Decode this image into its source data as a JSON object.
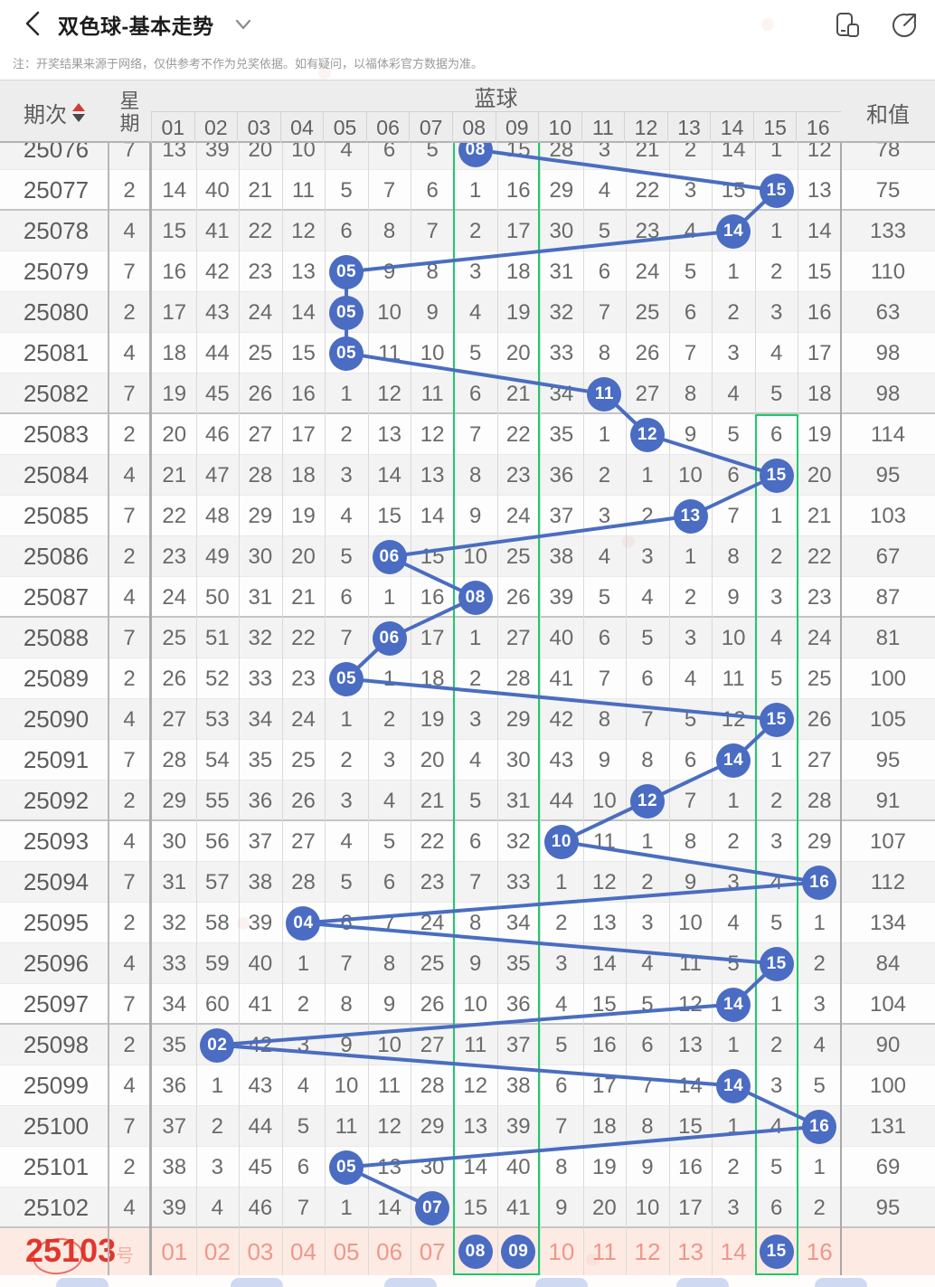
{
  "title_bar": {
    "title": "双色球-基本走势"
  },
  "notice": "注：开奖结果来源于网络，仅供参考不作为兑奖依据。如有疑问，以福体彩官方数据为准。",
  "header": {
    "period": "期次",
    "weekday_line1": "星",
    "weekday_line2": "期",
    "group": "蓝球",
    "sum": "和值",
    "ball_columns": [
      "01",
      "02",
      "03",
      "04",
      "05",
      "06",
      "07",
      "08",
      "09",
      "10",
      "11",
      "12",
      "13",
      "14",
      "15",
      "16"
    ]
  },
  "rows": [
    {
      "period": "25076",
      "weekday": "7",
      "hit": 8,
      "partial": true,
      "cells": [
        "13",
        "39",
        "20",
        "10",
        "4",
        "6",
        "5",
        "08",
        "15",
        "28",
        "3",
        "21",
        "2",
        "14",
        "1",
        "12"
      ],
      "sum": "78"
    },
    {
      "period": "25077",
      "weekday": "2",
      "hit": 15,
      "cells": [
        "14",
        "40",
        "21",
        "11",
        "5",
        "7",
        "6",
        "1",
        "16",
        "29",
        "4",
        "22",
        "3",
        "15",
        "15",
        "13"
      ],
      "sum": "75"
    },
    {
      "period": "25078",
      "weekday": "4",
      "hit": 14,
      "cells": [
        "15",
        "41",
        "22",
        "12",
        "6",
        "8",
        "7",
        "2",
        "17",
        "30",
        "5",
        "23",
        "4",
        "14",
        "1",
        "14"
      ],
      "sum": "133"
    },
    {
      "period": "25079",
      "weekday": "7",
      "hit": 5,
      "cells": [
        "16",
        "42",
        "23",
        "13",
        "05",
        "9",
        "8",
        "3",
        "18",
        "31",
        "6",
        "24",
        "5",
        "1",
        "2",
        "15"
      ],
      "sum": "110"
    },
    {
      "period": "25080",
      "weekday": "2",
      "hit": 5,
      "cells": [
        "17",
        "43",
        "24",
        "14",
        "05",
        "10",
        "9",
        "4",
        "19",
        "32",
        "7",
        "25",
        "6",
        "2",
        "3",
        "16"
      ],
      "sum": "63"
    },
    {
      "period": "25081",
      "weekday": "4",
      "hit": 5,
      "cells": [
        "18",
        "44",
        "25",
        "15",
        "05",
        "11",
        "10",
        "5",
        "20",
        "33",
        "8",
        "26",
        "7",
        "3",
        "4",
        "17"
      ],
      "sum": "98"
    },
    {
      "period": "25082",
      "weekday": "7",
      "hit": 11,
      "cells": [
        "19",
        "45",
        "26",
        "16",
        "1",
        "12",
        "11",
        "6",
        "21",
        "34",
        "11",
        "27",
        "8",
        "4",
        "5",
        "18"
      ],
      "sum": "98"
    },
    {
      "period": "25083",
      "weekday": "2",
      "hit": 12,
      "cells": [
        "20",
        "46",
        "27",
        "17",
        "2",
        "13",
        "12",
        "7",
        "22",
        "35",
        "1",
        "12",
        "9",
        "5",
        "6",
        "19"
      ],
      "sum": "114"
    },
    {
      "period": "25084",
      "weekday": "4",
      "hit": 15,
      "cells": [
        "21",
        "47",
        "28",
        "18",
        "3",
        "14",
        "13",
        "8",
        "23",
        "36",
        "2",
        "1",
        "10",
        "6",
        "15",
        "20"
      ],
      "sum": "95"
    },
    {
      "period": "25085",
      "weekday": "7",
      "hit": 13,
      "cells": [
        "22",
        "48",
        "29",
        "19",
        "4",
        "15",
        "14",
        "9",
        "24",
        "37",
        "3",
        "2",
        "13",
        "7",
        "1",
        "21"
      ],
      "sum": "103"
    },
    {
      "period": "25086",
      "weekday": "2",
      "hit": 6,
      "cells": [
        "23",
        "49",
        "30",
        "20",
        "5",
        "06",
        "15",
        "10",
        "25",
        "38",
        "4",
        "3",
        "1",
        "8",
        "2",
        "22"
      ],
      "sum": "67"
    },
    {
      "period": "25087",
      "weekday": "4",
      "hit": 8,
      "cells": [
        "24",
        "50",
        "31",
        "21",
        "6",
        "1",
        "16",
        "08",
        "26",
        "39",
        "5",
        "4",
        "2",
        "9",
        "3",
        "23"
      ],
      "sum": "87"
    },
    {
      "period": "25088",
      "weekday": "7",
      "hit": 6,
      "cells": [
        "25",
        "51",
        "32",
        "22",
        "7",
        "06",
        "17",
        "1",
        "27",
        "40",
        "6",
        "5",
        "3",
        "10",
        "4",
        "24"
      ],
      "sum": "81"
    },
    {
      "period": "25089",
      "weekday": "2",
      "hit": 5,
      "cells": [
        "26",
        "52",
        "33",
        "23",
        "05",
        "1",
        "18",
        "2",
        "28",
        "41",
        "7",
        "6",
        "4",
        "11",
        "5",
        "25"
      ],
      "sum": "100"
    },
    {
      "period": "25090",
      "weekday": "4",
      "hit": 15,
      "cells": [
        "27",
        "53",
        "34",
        "24",
        "1",
        "2",
        "19",
        "3",
        "29",
        "42",
        "8",
        "7",
        "5",
        "12",
        "15",
        "26"
      ],
      "sum": "105"
    },
    {
      "period": "25091",
      "weekday": "7",
      "hit": 14,
      "cells": [
        "28",
        "54",
        "35",
        "25",
        "2",
        "3",
        "20",
        "4",
        "30",
        "43",
        "9",
        "8",
        "6",
        "14",
        "1",
        "27"
      ],
      "sum": "95"
    },
    {
      "period": "25092",
      "weekday": "2",
      "hit": 12,
      "cells": [
        "29",
        "55",
        "36",
        "26",
        "3",
        "4",
        "21",
        "5",
        "31",
        "44",
        "10",
        "12",
        "7",
        "1",
        "2",
        "28"
      ],
      "sum": "91"
    },
    {
      "period": "25093",
      "weekday": "4",
      "hit": 10,
      "cells": [
        "30",
        "56",
        "37",
        "27",
        "4",
        "5",
        "22",
        "6",
        "32",
        "10",
        "11",
        "1",
        "8",
        "2",
        "3",
        "29"
      ],
      "sum": "107"
    },
    {
      "period": "25094",
      "weekday": "7",
      "hit": 16,
      "cells": [
        "31",
        "57",
        "38",
        "28",
        "5",
        "6",
        "23",
        "7",
        "33",
        "1",
        "12",
        "2",
        "9",
        "3",
        "4",
        "16"
      ],
      "sum": "112"
    },
    {
      "period": "25095",
      "weekday": "2",
      "hit": 4,
      "cells": [
        "32",
        "58",
        "39",
        "04",
        "6",
        "7",
        "24",
        "8",
        "34",
        "2",
        "13",
        "3",
        "10",
        "4",
        "5",
        "1"
      ],
      "sum": "134"
    },
    {
      "period": "25096",
      "weekday": "4",
      "hit": 15,
      "cells": [
        "33",
        "59",
        "40",
        "1",
        "7",
        "8",
        "25",
        "9",
        "35",
        "3",
        "14",
        "4",
        "11",
        "5",
        "15",
        "2"
      ],
      "sum": "84"
    },
    {
      "period": "25097",
      "weekday": "7",
      "hit": 14,
      "cells": [
        "34",
        "60",
        "41",
        "2",
        "8",
        "9",
        "26",
        "10",
        "36",
        "4",
        "15",
        "5",
        "12",
        "14",
        "1",
        "3"
      ],
      "sum": "104"
    },
    {
      "period": "25098",
      "weekday": "2",
      "hit": 2,
      "cells": [
        "35",
        "02",
        "42",
        "3",
        "9",
        "10",
        "27",
        "11",
        "37",
        "5",
        "16",
        "6",
        "13",
        "1",
        "2",
        "4"
      ],
      "sum": "90"
    },
    {
      "period": "25099",
      "weekday": "4",
      "hit": 14,
      "cells": [
        "36",
        "1",
        "43",
        "4",
        "10",
        "11",
        "28",
        "12",
        "38",
        "6",
        "17",
        "7",
        "14",
        "14",
        "3",
        "5"
      ],
      "sum": "100"
    },
    {
      "period": "25100",
      "weekday": "7",
      "hit": 16,
      "cells": [
        "37",
        "2",
        "44",
        "5",
        "11",
        "12",
        "29",
        "13",
        "39",
        "7",
        "18",
        "8",
        "15",
        "1",
        "4",
        "16"
      ],
      "sum": "131"
    },
    {
      "period": "25101",
      "weekday": "2",
      "hit": 5,
      "cells": [
        "38",
        "3",
        "45",
        "6",
        "05",
        "13",
        "30",
        "14",
        "40",
        "8",
        "19",
        "9",
        "16",
        "2",
        "5",
        "1"
      ],
      "sum": "69"
    },
    {
      "period": "25102",
      "weekday": "4",
      "hit": 7,
      "cells": [
        "39",
        "4",
        "46",
        "7",
        "1",
        "14",
        "07",
        "15",
        "41",
        "9",
        "20",
        "10",
        "17",
        "3",
        "6",
        "2"
      ],
      "sum": "95"
    }
  ],
  "next_row": {
    "period": "25103",
    "suffix": "号",
    "labels": [
      "01",
      "02",
      "03",
      "04",
      "05",
      "06",
      "07",
      "08",
      "09",
      "10",
      "11",
      "12",
      "13",
      "14",
      "15",
      "16"
    ],
    "ball_cols": [
      8,
      9,
      15
    ],
    "ball_labels": [
      "08",
      "09",
      "15"
    ]
  },
  "highlights": {
    "columns_8_9": [
      8,
      9
    ],
    "column_15": 15,
    "column_15_from_period": "25083"
  },
  "colors": {
    "ball_blue": "#4a6cc2",
    "trend_line": "#4a6dc0",
    "highlight_green": "#1fc96b",
    "next_row_bg": "#fdebe3",
    "next_period_red": "#e3362c",
    "next_label_pink": "#f0968c",
    "sort_up_red": "#d43a2f"
  }
}
